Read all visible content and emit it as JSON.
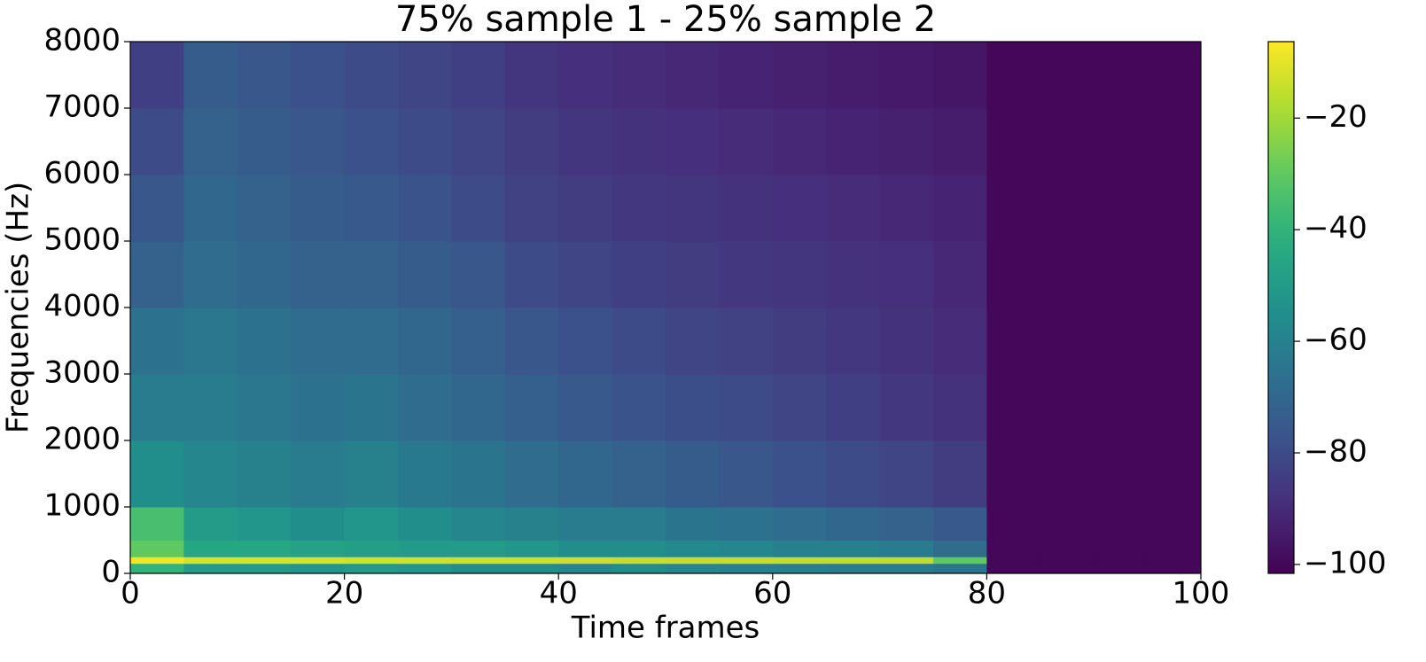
{
  "chart_data": {
    "type": "heatmap",
    "title": "75% sample 1 - 25% sample 2",
    "x_label": "Time frames",
    "y_label": "Frequencies (Hz)",
    "xbins": [
      0,
      5,
      10,
      15,
      20,
      25,
      30,
      35,
      40,
      45,
      50,
      55,
      60,
      65,
      70,
      75,
      80,
      85,
      90,
      95,
      100
    ],
    "ybins": [
      0,
      150,
      250,
      500,
      1000,
      2000,
      3000,
      4000,
      5000,
      6000,
      7000,
      8000
    ],
    "values": [
      [
        -40,
        -50,
        -50,
        -52,
        -50,
        -52,
        -55,
        -55,
        -58,
        -55,
        -58,
        -60,
        -60,
        -62,
        -62,
        -65,
        -100,
        -100,
        -100,
        -100
      ],
      [
        -8,
        -12,
        -12,
        -12,
        -13,
        -13,
        -14,
        -14,
        -14,
        -15,
        -15,
        -15,
        -16,
        -16,
        -16,
        -30,
        -100,
        -100,
        -100,
        -100
      ],
      [
        -30,
        -45,
        -45,
        -47,
        -48,
        -50,
        -50,
        -52,
        -55,
        -55,
        -57,
        -58,
        -60,
        -60,
        -62,
        -68,
        -100,
        -100,
        -100,
        -100
      ],
      [
        -35,
        -50,
        -52,
        -55,
        -52,
        -55,
        -58,
        -60,
        -62,
        -62,
        -65,
        -66,
        -68,
        -70,
        -72,
        -75,
        -100,
        -100,
        -100,
        -100
      ],
      [
        -55,
        -58,
        -60,
        -62,
        -60,
        -63,
        -65,
        -68,
        -70,
        -72,
        -74,
        -76,
        -78,
        -80,
        -82,
        -85,
        -100,
        -100,
        -100,
        -100
      ],
      [
        -62,
        -62,
        -64,
        -66,
        -65,
        -68,
        -70,
        -73,
        -75,
        -77,
        -79,
        -80,
        -82,
        -84,
        -86,
        -88,
        -100,
        -100,
        -100,
        -100
      ],
      [
        -66,
        -64,
        -66,
        -68,
        -68,
        -70,
        -73,
        -76,
        -78,
        -80,
        -82,
        -83,
        -85,
        -86,
        -88,
        -90,
        -100,
        -100,
        -100,
        -100
      ],
      [
        -72,
        -68,
        -70,
        -72,
        -72,
        -74,
        -76,
        -80,
        -82,
        -84,
        -85,
        -86,
        -87,
        -88,
        -89,
        -91,
        -100,
        -100,
        -100,
        -100
      ],
      [
        -76,
        -70,
        -72,
        -74,
        -75,
        -77,
        -80,
        -83,
        -85,
        -86,
        -87,
        -88,
        -89,
        -90,
        -91,
        -92,
        -100,
        -100,
        -100,
        -100
      ],
      [
        -80,
        -72,
        -74,
        -76,
        -78,
        -80,
        -82,
        -85,
        -87,
        -88,
        -89,
        -90,
        -91,
        -92,
        -93,
        -94,
        -100,
        -100,
        -100,
        -100
      ],
      [
        -84,
        -74,
        -76,
        -78,
        -80,
        -82,
        -84,
        -87,
        -89,
        -90,
        -91,
        -92,
        -93,
        -94,
        -95,
        -96,
        -100,
        -100,
        -100,
        -100
      ]
    ],
    "xlim": [
      0,
      100
    ],
    "xticks": [
      0,
      20,
      40,
      60,
      80,
      100
    ],
    "ylim": [
      0,
      8000
    ],
    "yticks": [
      0,
      1000,
      2000,
      3000,
      4000,
      5000,
      6000,
      7000,
      8000
    ],
    "colormap": "viridis",
    "clim": [
      -101.6,
      -6.3
    ],
    "colorbar_ticks": [
      {
        "value": -20,
        "label": "−20"
      },
      {
        "value": -40,
        "label": "−40"
      },
      {
        "value": -60,
        "label": "−60"
      },
      {
        "value": -80,
        "label": "−80"
      },
      {
        "value": -100,
        "label": "−100"
      }
    ]
  }
}
